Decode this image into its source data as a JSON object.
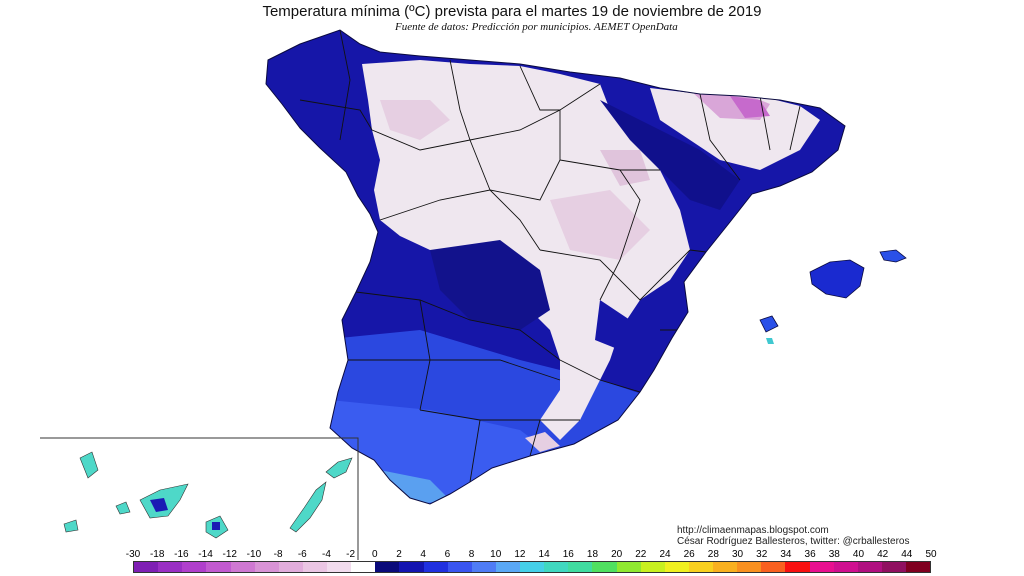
{
  "title": "Temperatura mínima (ºC) prevista para el martes 19 de noviembre de 2019",
  "subtitle": "Fuente de datos: Predicción por municipios. AEMET OpenData",
  "credit": {
    "url": "http://climaenmapas.blogspot.com",
    "author": "César Rodríguez Ballesteros, twitter: @crballesteros"
  },
  "legend": {
    "unit": "ºC",
    "ticks": [
      "-30",
      "-18",
      "-16",
      "-14",
      "-12",
      "-10",
      "-8",
      "-6",
      "-4",
      "-2",
      "0",
      "2",
      "4",
      "6",
      "8",
      "10",
      "12",
      "14",
      "16",
      "18",
      "20",
      "22",
      "24",
      "26",
      "28",
      "30",
      "32",
      "34",
      "36",
      "38",
      "40",
      "42",
      "44",
      "50"
    ],
    "colors": [
      "#7f1fb4",
      "#9a2fc4",
      "#b03fcc",
      "#c25ad0",
      "#cf78d2",
      "#d993d6",
      "#e2addc",
      "#ebc6e4",
      "#f2dcee",
      "#ffffff",
      "#0a0a7a",
      "#1414b0",
      "#2030e0",
      "#3a55f0",
      "#4f7cf5",
      "#5aa8f5",
      "#45d0e8",
      "#40d8c0",
      "#40dca0",
      "#50e060",
      "#90e830",
      "#c8f020",
      "#f0f020",
      "#f8d020",
      "#f8b020",
      "#f89020",
      "#f86020",
      "#f81010",
      "#e81090",
      "#d01090",
      "#b01080",
      "#901060",
      "#800020"
    ]
  },
  "regions": {
    "peninsula": "Península",
    "balearics": "Islas Baleares",
    "canaries": "Islas Canarias"
  },
  "map_legend": {
    "cold_zone_color": "#efe7ef",
    "mild_zone_color": "#1a1ab4",
    "warm_zone_color": "#2a46e0",
    "canary_color": "#4ed8c8"
  }
}
